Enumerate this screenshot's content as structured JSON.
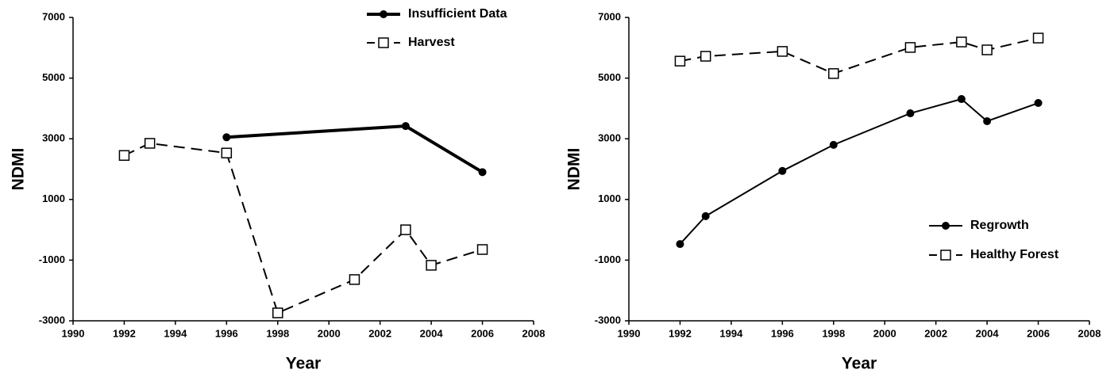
{
  "chart_data": [
    {
      "type": "line",
      "x_label": "Year",
      "y_label": "NDMI",
      "xlim": [
        1990,
        2008
      ],
      "xticks": [
        1990,
        1992,
        1994,
        1996,
        1998,
        2000,
        2002,
        2004,
        2006,
        2008
      ],
      "ylim": [
        -3000,
        7000
      ],
      "yticks": [
        -3000,
        -1000,
        1000,
        3000,
        5000,
        7000
      ],
      "legend": "upper right",
      "series": [
        {
          "name": "Insufficient Data",
          "color": "#000000",
          "style": "solid",
          "line_width": 4,
          "marker": "circle",
          "x": [
            1996,
            2003,
            2006
          ],
          "values": [
            3050,
            3420,
            1900
          ]
        },
        {
          "name": "Harvest",
          "color": "#000000",
          "style": "dashed",
          "line_width": 2,
          "marker": "square",
          "x": [
            1992,
            1993,
            1996,
            1998,
            2001,
            2003,
            2004,
            2006
          ],
          "values": [
            2450,
            2850,
            2530,
            -2740,
            -1640,
            0,
            -1170,
            -650
          ]
        }
      ]
    },
    {
      "type": "line",
      "x_label": "Year",
      "y_label": "NDMI",
      "xlim": [
        1990,
        2008
      ],
      "xticks": [
        1990,
        1992,
        1994,
        1996,
        1998,
        2000,
        2002,
        2004,
        2006,
        2008
      ],
      "ylim": [
        -3000,
        7000
      ],
      "yticks": [
        -3000,
        -1000,
        1000,
        3000,
        5000,
        7000
      ],
      "legend": "lower right",
      "series": [
        {
          "name": "Regrowth",
          "color": "#000000",
          "style": "solid",
          "line_width": 2,
          "marker": "circle",
          "x": [
            1992,
            1993,
            1996,
            1998,
            2001,
            2003,
            2004,
            2006
          ],
          "values": [
            -470,
            450,
            1940,
            2800,
            3840,
            4310,
            3580,
            4180
          ]
        },
        {
          "name": "Healthy Forest",
          "color": "#000000",
          "style": "dashed",
          "line_width": 2,
          "marker": "square",
          "x": [
            1992,
            1993,
            1996,
            1998,
            2001,
            2003,
            2004,
            2006
          ],
          "values": [
            5560,
            5720,
            5880,
            5150,
            6010,
            6190,
            5930,
            6320
          ]
        }
      ]
    }
  ]
}
